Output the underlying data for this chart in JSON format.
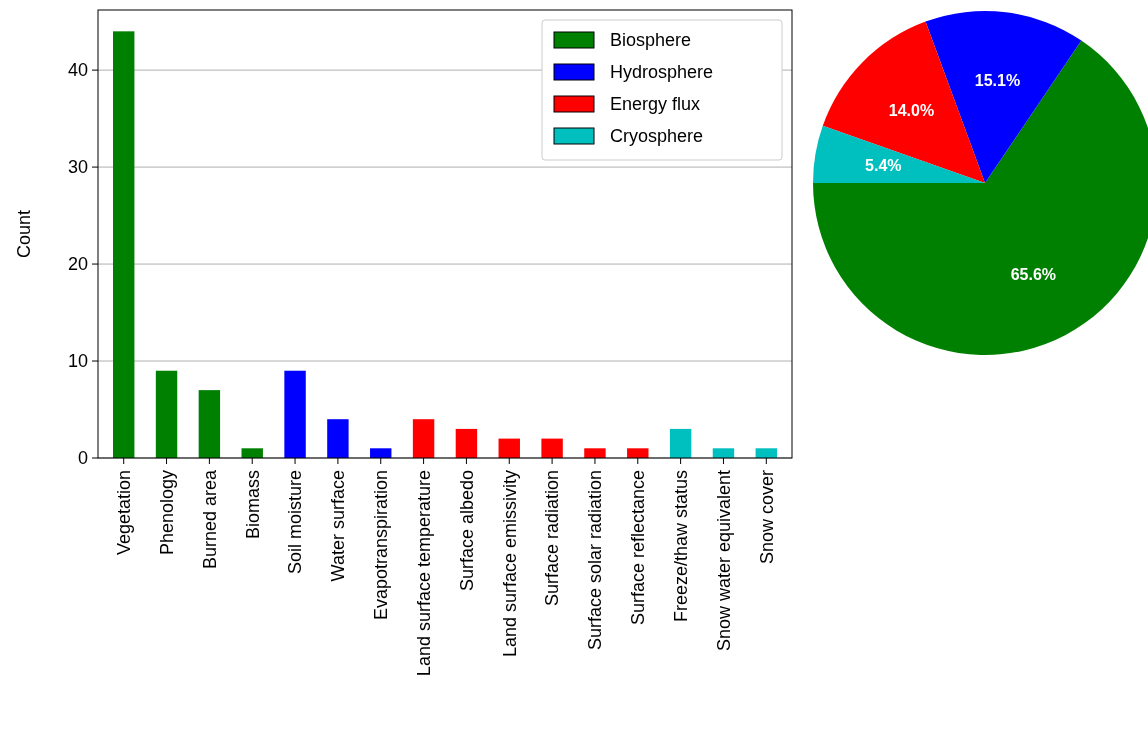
{
  "chart_data": [
    {
      "type": "bar",
      "ylabel": "Count",
      "categories": [
        "Vegetation",
        "Phenology",
        "Burned area",
        "Biomass",
        "Soil moisture",
        "Water surface",
        "Evapotranspiration",
        "Land surface temperature",
        "Surface albedo",
        "Land surface emissivity",
        "Surface radiation",
        "Surface solar radiation",
        "Surface reflectance",
        "Freeze/thaw status",
        "Snow water equivalent",
        "Snow cover"
      ],
      "stacked": true,
      "series": [
        {
          "name": "Biosphere",
          "color": "#008000",
          "values": [
            44,
            9,
            7,
            1,
            null,
            null,
            null,
            null,
            null,
            null,
            null,
            null,
            null,
            null,
            null,
            null
          ]
        },
        {
          "name": "Hydrosphere",
          "color": "#0000ff",
          "values": [
            null,
            null,
            null,
            null,
            9,
            4,
            1,
            null,
            null,
            null,
            null,
            null,
            null,
            null,
            null,
            null
          ]
        },
        {
          "name": "Energy flux",
          "color": "#ff0000",
          "values": [
            null,
            null,
            null,
            null,
            null,
            null,
            null,
            4,
            3,
            2,
            2,
            1,
            1,
            null,
            null,
            null
          ]
        },
        {
          "name": "Cryosphere",
          "color": "#00bfbf",
          "values": [
            null,
            null,
            null,
            null,
            null,
            null,
            null,
            null,
            null,
            null,
            null,
            null,
            null,
            3,
            1,
            1
          ]
        }
      ],
      "ylim": [
        0,
        46.2
      ],
      "yticks": [
        0,
        10,
        20,
        30,
        40
      ],
      "grid": "y",
      "legend": "top right"
    },
    {
      "type": "pie",
      "categories": [
        null,
        null,
        null,
        null
      ],
      "values": [
        65.6,
        15.1,
        14.0,
        5.4
      ],
      "colors": [
        "#008000",
        "#0000ff",
        "#ff0000",
        "#00bfbf"
      ],
      "value_labels": [
        "65.6%",
        "15.1%",
        "14.0%",
        "5.4%"
      ]
    }
  ]
}
